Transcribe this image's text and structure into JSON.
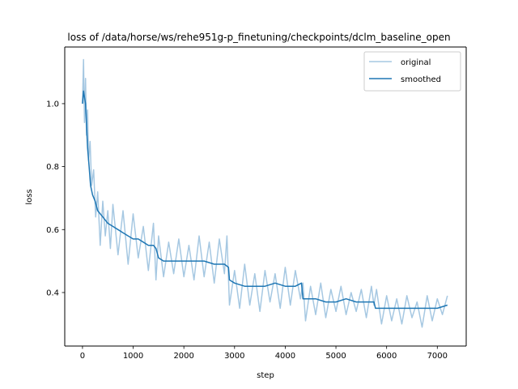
{
  "chart_data": {
    "type": "line",
    "title": "loss of /data/horse/ws/rehe951g-p_finetuning/checkpoints/dclm_baseline_open",
    "xlabel": "step",
    "ylabel": "loss",
    "xlim": [
      -350,
      7570
    ],
    "ylim": [
      0.23,
      1.18
    ],
    "x_ticks": [
      0,
      1000,
      2000,
      3000,
      4000,
      5000,
      6000,
      7000
    ],
    "x_tick_labels": [
      "0",
      "1000",
      "2000",
      "3000",
      "4000",
      "5000",
      "6000",
      "7000"
    ],
    "y_ticks": [
      0.4,
      0.6,
      0.8,
      1.0
    ],
    "y_tick_labels": [
      "0.4",
      "0.6",
      "0.8",
      "1.0"
    ],
    "grid": false,
    "legend_position": "upper right",
    "series": [
      {
        "name": "original",
        "color": "#a6c8e2",
        "x": [
          0,
          20,
          40,
          60,
          80,
          100,
          120,
          150,
          180,
          220,
          260,
          300,
          350,
          400,
          450,
          500,
          550,
          600,
          700,
          800,
          900,
          1000,
          1100,
          1200,
          1300,
          1400,
          1450,
          1500,
          1600,
          1700,
          1800,
          1900,
          2000,
          2100,
          2200,
          2300,
          2400,
          2500,
          2600,
          2700,
          2800,
          2850,
          2900,
          3000,
          3100,
          3200,
          3300,
          3400,
          3500,
          3600,
          3700,
          3800,
          3900,
          4000,
          4100,
          4200,
          4300,
          4350,
          4400,
          4500,
          4600,
          4700,
          4800,
          4900,
          5000,
          5100,
          5200,
          5300,
          5400,
          5500,
          5600,
          5700,
          5750,
          5800,
          5900,
          6000,
          6100,
          6200,
          6300,
          6400,
          6500,
          6600,
          6700,
          6800,
          6900,
          7000,
          7100,
          7200
        ],
        "values": [
          1.0,
          1.14,
          0.94,
          1.08,
          0.9,
          0.98,
          0.82,
          0.88,
          0.74,
          0.79,
          0.64,
          0.72,
          0.55,
          0.69,
          0.58,
          0.66,
          0.54,
          0.68,
          0.52,
          0.66,
          0.49,
          0.65,
          0.51,
          0.61,
          0.47,
          0.62,
          0.44,
          0.58,
          0.45,
          0.56,
          0.46,
          0.57,
          0.45,
          0.55,
          0.44,
          0.58,
          0.45,
          0.56,
          0.43,
          0.57,
          0.46,
          0.58,
          0.36,
          0.47,
          0.35,
          0.49,
          0.36,
          0.46,
          0.34,
          0.47,
          0.37,
          0.46,
          0.35,
          0.48,
          0.36,
          0.47,
          0.38,
          0.43,
          0.31,
          0.42,
          0.33,
          0.43,
          0.32,
          0.41,
          0.34,
          0.42,
          0.33,
          0.4,
          0.34,
          0.41,
          0.32,
          0.42,
          0.36,
          0.41,
          0.3,
          0.39,
          0.31,
          0.38,
          0.3,
          0.39,
          0.32,
          0.37,
          0.29,
          0.39,
          0.31,
          0.38,
          0.33,
          0.39
        ]
      },
      {
        "name": "smoothed",
        "color": "#1f77b4",
        "x": [
          0,
          20,
          40,
          60,
          80,
          100,
          130,
          160,
          200,
          250,
          300,
          400,
          500,
          600,
          700,
          800,
          900,
          1000,
          1100,
          1200,
          1300,
          1400,
          1450,
          1500,
          1600,
          1800,
          2000,
          2200,
          2400,
          2600,
          2800,
          2880,
          2900,
          3000,
          3200,
          3400,
          3600,
          3800,
          4000,
          4200,
          4320,
          4350,
          4400,
          4600,
          4800,
          5000,
          5200,
          5400,
          5600,
          5750,
          5780,
          5800,
          6000,
          6200,
          6400,
          6600,
          6800,
          7000,
          7200
        ],
        "values": [
          1.0,
          1.04,
          1.02,
          1.0,
          0.93,
          0.86,
          0.8,
          0.74,
          0.71,
          0.69,
          0.66,
          0.64,
          0.62,
          0.61,
          0.6,
          0.59,
          0.58,
          0.57,
          0.57,
          0.56,
          0.55,
          0.55,
          0.54,
          0.51,
          0.5,
          0.5,
          0.5,
          0.5,
          0.5,
          0.49,
          0.49,
          0.48,
          0.44,
          0.43,
          0.42,
          0.42,
          0.42,
          0.43,
          0.42,
          0.42,
          0.43,
          0.38,
          0.38,
          0.38,
          0.37,
          0.37,
          0.38,
          0.37,
          0.37,
          0.37,
          0.35,
          0.35,
          0.35,
          0.35,
          0.35,
          0.35,
          0.35,
          0.35,
          0.36
        ]
      }
    ]
  }
}
